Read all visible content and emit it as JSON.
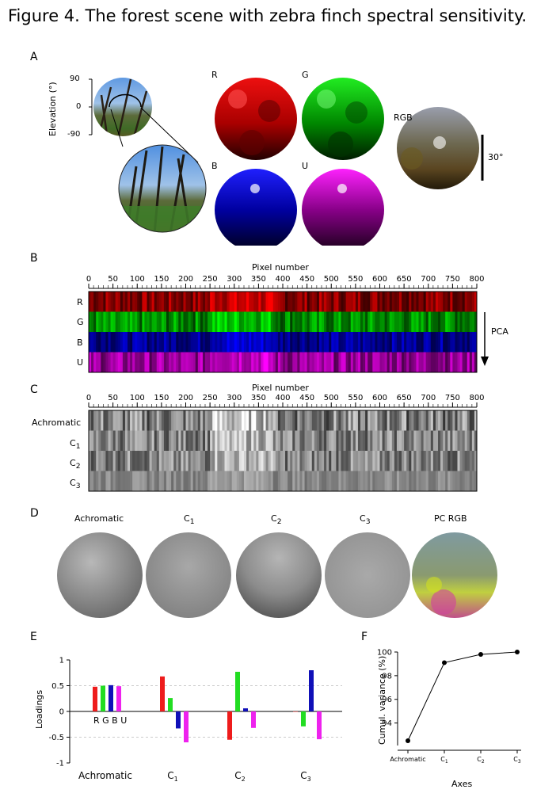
{
  "figure": {
    "title": "Figure 4. The forest scene with zebra finch spectral sensitivity."
  },
  "panel_a": {
    "label": "A",
    "elevation_label": "Elevation (°)",
    "elevation_ticks": [
      "90",
      "0",
      "-90"
    ],
    "channel_labels": [
      "R",
      "G",
      "B",
      "U"
    ],
    "rgb_label": "RGB",
    "scale_label": "30°"
  },
  "panel_b": {
    "label": "B",
    "axis_title": "Pixel number",
    "row_labels": [
      "R",
      "G",
      "B",
      "U"
    ],
    "arrow_label": "PCA"
  },
  "panel_c": {
    "label": "C",
    "axis_title": "Pixel number",
    "row_labels": [
      {
        "main": "Achromatic",
        "sub": ""
      },
      {
        "main": "C",
        "sub": "1"
      },
      {
        "main": "C",
        "sub": "2"
      },
      {
        "main": "C",
        "sub": "3"
      }
    ]
  },
  "panel_d": {
    "label": "D",
    "titles": [
      {
        "main": "Achromatic",
        "sub": ""
      },
      {
        "main": "C",
        "sub": "1"
      },
      {
        "main": "C",
        "sub": "2"
      },
      {
        "main": "C",
        "sub": "3"
      },
      {
        "main": "PC RGB",
        "sub": ""
      }
    ]
  },
  "panel_e": {
    "label": "E",
    "ylabel": "Loadings",
    "inline_channel_label": "R G B U"
  },
  "panel_f": {
    "label": "F",
    "ylabel": "Cumul. variance (%)",
    "xlabel": "Axes"
  },
  "chart_data": [
    {
      "type": "bar",
      "id": "pixel-number-axis",
      "xlabel": "Pixel number",
      "x_ticks": [
        0,
        50,
        100,
        150,
        200,
        250,
        300,
        350,
        400,
        450,
        500,
        550,
        600,
        650,
        700,
        750,
        800
      ],
      "xlim": [
        0,
        800
      ]
    },
    {
      "type": "bar",
      "id": "loadings",
      "ylabel": "Loadings",
      "ylim": [
        -1,
        1
      ],
      "y_ticks": [
        1,
        0.5,
        0,
        -0.5,
        -1
      ],
      "categories": [
        "Achromatic",
        "C1",
        "C2",
        "C3"
      ],
      "category_labels": [
        {
          "main": "Achromatic",
          "sub": ""
        },
        {
          "main": "C",
          "sub": "1"
        },
        {
          "main": "C",
          "sub": "2"
        },
        {
          "main": "C",
          "sub": "3"
        }
      ],
      "series": [
        {
          "color": "#ee1c1c",
          "values": [
            0.48,
            0.68,
            -0.55,
            0.0
          ]
        },
        {
          "color": "#22dd22",
          "values": [
            0.5,
            0.26,
            0.77,
            -0.29
          ]
        },
        {
          "color": "#1010b8",
          "values": [
            0.51,
            -0.33,
            0.06,
            0.8
          ]
        },
        {
          "color": "#ee22ee",
          "values": [
            0.49,
            -0.6,
            -0.32,
            -0.54
          ]
        }
      ]
    },
    {
      "type": "line",
      "id": "cumulative-variance",
      "ylabel": "Cumul. variance (%)",
      "xlabel": "Axes",
      "ylim": [
        92.5,
        100
      ],
      "y_ticks": [
        100,
        98,
        96,
        94
      ],
      "categories": [
        "Achromatic",
        "C1",
        "C2",
        "C3"
      ],
      "category_labels": [
        {
          "main": "Achromatic",
          "sub": ""
        },
        {
          "main": "C",
          "sub": "1"
        },
        {
          "main": "C",
          "sub": "2"
        },
        {
          "main": "C",
          "sub": "3"
        }
      ],
      "values": [
        92.5,
        99.1,
        99.8,
        100.0
      ]
    }
  ]
}
